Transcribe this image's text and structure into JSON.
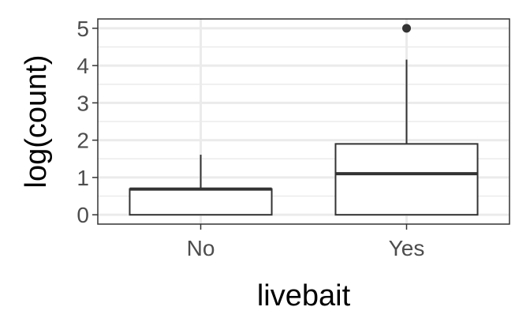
{
  "chart_data": {
    "type": "boxplot",
    "xlabel": "livebait",
    "ylabel": "log(count)",
    "categories": [
      "No",
      "Yes"
    ],
    "ylim": [
      -0.25,
      5.25
    ],
    "yticks": [
      0,
      1,
      2,
      3,
      4,
      5
    ],
    "grid": true,
    "boxes": [
      {
        "category": "No",
        "lower_whisker": 0,
        "q1": 0,
        "median": 0.69,
        "q3": 0.69,
        "upper_whisker": 1.61,
        "outliers": []
      },
      {
        "category": "Yes",
        "lower_whisker": 0,
        "q1": 0,
        "median": 1.1,
        "q3": 1.9,
        "upper_whisker": 4.16,
        "outliers": [
          5.0
        ]
      }
    ]
  }
}
